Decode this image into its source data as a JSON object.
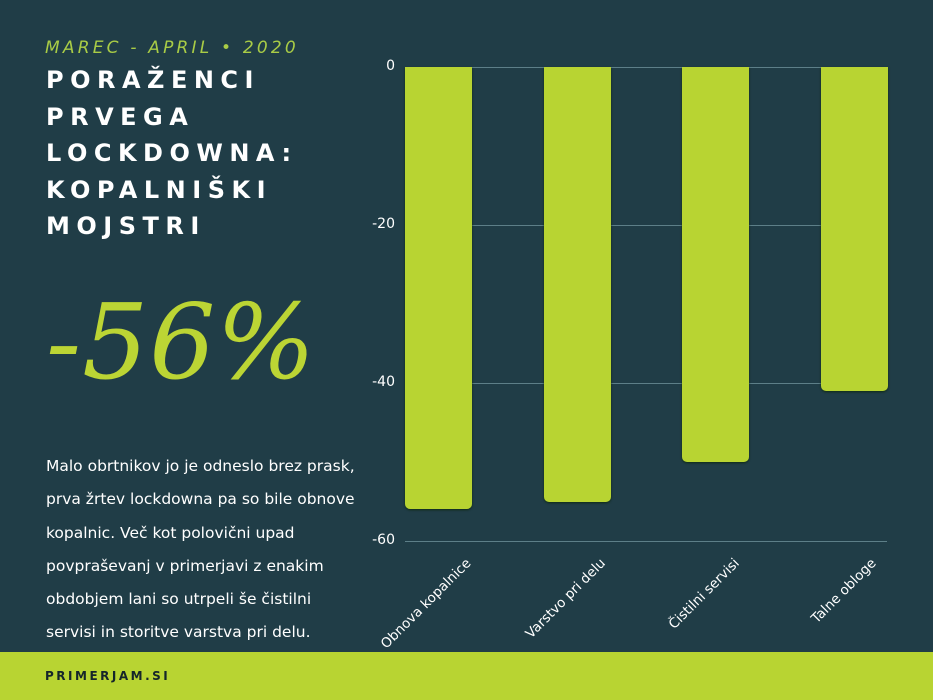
{
  "header": {
    "subtitle": "MAREC - APRIL • 2020",
    "title_lines": [
      "PORAŽENCI",
      "PRVEGA",
      "LOCKDOWNA:",
      "KOPALNIŠKI",
      "MOJSTRI"
    ]
  },
  "highlight": {
    "value": "-56%"
  },
  "body": {
    "lines": [
      "Malo obrtnikov jo je odneslo brez prask,",
      "prva žrtev lockdowna pa so bile obnove",
      "kopalnic. Več kot polovični upad",
      "povpraševanj v primerjavi z enakim",
      "obdobjem lani so utrpeli še čistilni",
      "servisi in storitve varstva pri delu."
    ]
  },
  "footer": {
    "brand": "PRIMERJAM.SI"
  },
  "colors": {
    "background": "#203d47",
    "accent": "#b8d432",
    "text": "#ffffff"
  },
  "chart_data": {
    "type": "bar",
    "title": "",
    "xlabel": "",
    "ylabel": "",
    "categories": [
      "Obnova kopalnice",
      "Varstvo pri delu",
      "Čistilni servisi",
      "Talne obloge"
    ],
    "values": [
      -56,
      -55,
      -50,
      -41
    ],
    "ylim": [
      -60,
      0
    ],
    "yticks": [
      "0",
      "-20",
      "-40",
      "-60"
    ],
    "grid": true,
    "legend": null,
    "bar_color": "#b8d432"
  }
}
